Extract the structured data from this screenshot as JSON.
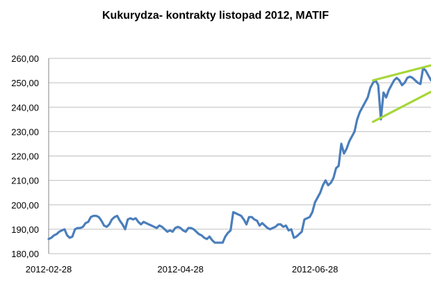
{
  "chart_data": {
    "type": "line",
    "title": "Kukurydza- kontrakty listopad 2012, MATIF",
    "xlabel": "",
    "ylabel": "",
    "ylim": [
      180,
      260
    ],
    "yticks": [
      "180,00",
      "190,00",
      "200,00",
      "210,00",
      "220,00",
      "230,00",
      "240,00",
      "250,00",
      "260,00"
    ],
    "xticks": [
      {
        "label": "2012-02-28",
        "index": 0
      },
      {
        "label": "2012-04-28",
        "index": 50
      },
      {
        "label": "2012-06-28",
        "index": 101
      }
    ],
    "grid": "horizontal",
    "legend": "none",
    "colors": {
      "series": "#4a7ebb",
      "trendlines": "#a6d639",
      "grid": "#bfbfbf"
    },
    "series": [
      {
        "values": [
          186.0,
          186.5,
          187.5,
          188.0,
          189.0,
          189.5,
          190.0,
          187.5,
          186.5,
          187.0,
          190.0,
          190.5,
          190.5,
          191.0,
          192.5,
          193.0,
          195.0,
          195.5,
          195.5,
          195.0,
          193.5,
          191.5,
          191.0,
          192.0,
          194.0,
          195.0,
          195.5,
          193.5,
          192.0,
          190.0,
          194.0,
          194.5,
          194.0,
          194.5,
          193.0,
          192.0,
          193.0,
          192.5,
          192.0,
          191.5,
          191.0,
          190.5,
          191.5,
          191.0,
          190.0,
          189.0,
          189.5,
          189.0,
          190.5,
          191.0,
          190.5,
          189.5,
          189.0,
          190.5,
          190.5,
          190.0,
          189.0,
          188.0,
          187.5,
          186.5,
          186.0,
          187.0,
          185.5,
          184.5,
          184.5,
          184.5,
          184.5,
          187.0,
          188.5,
          189.5,
          197.0,
          196.5,
          196.0,
          195.5,
          194.0,
          192.0,
          195.0,
          195.0,
          194.0,
          193.5,
          191.5,
          192.5,
          191.5,
          190.5,
          190.0,
          190.5,
          191.0,
          192.0,
          192.0,
          191.0,
          191.5,
          189.5,
          190.0,
          186.5,
          187.0,
          188.0,
          189.0,
          194.0,
          194.5,
          195.0,
          197.0,
          201.0,
          203.0,
          205.0,
          208.0,
          210.0,
          208.0,
          209.0,
          211.0,
          215.0,
          216.0,
          225.0,
          221.0,
          223.0,
          226.0,
          228.0,
          230.0,
          235.0,
          238.0,
          240.0,
          242.0,
          244.0,
          248.0,
          250.0,
          251.0,
          249.0,
          235.0,
          246.0,
          244.0,
          247.0,
          249.0,
          251.0,
          252.0,
          251.0,
          249.0,
          250.0,
          252.0,
          252.5,
          252.0,
          251.0,
          250.0,
          249.5,
          256.0,
          255.0,
          253.0,
          251.0
        ]
      }
    ],
    "trendlines": [
      {
        "from": {
          "index": 123,
          "value": 251.0
        },
        "to": {
          "index": 148,
          "value": 258.0
        }
      },
      {
        "from": {
          "index": 123,
          "value": 234.0
        },
        "to": {
          "index": 148,
          "value": 248.0
        }
      }
    ]
  }
}
